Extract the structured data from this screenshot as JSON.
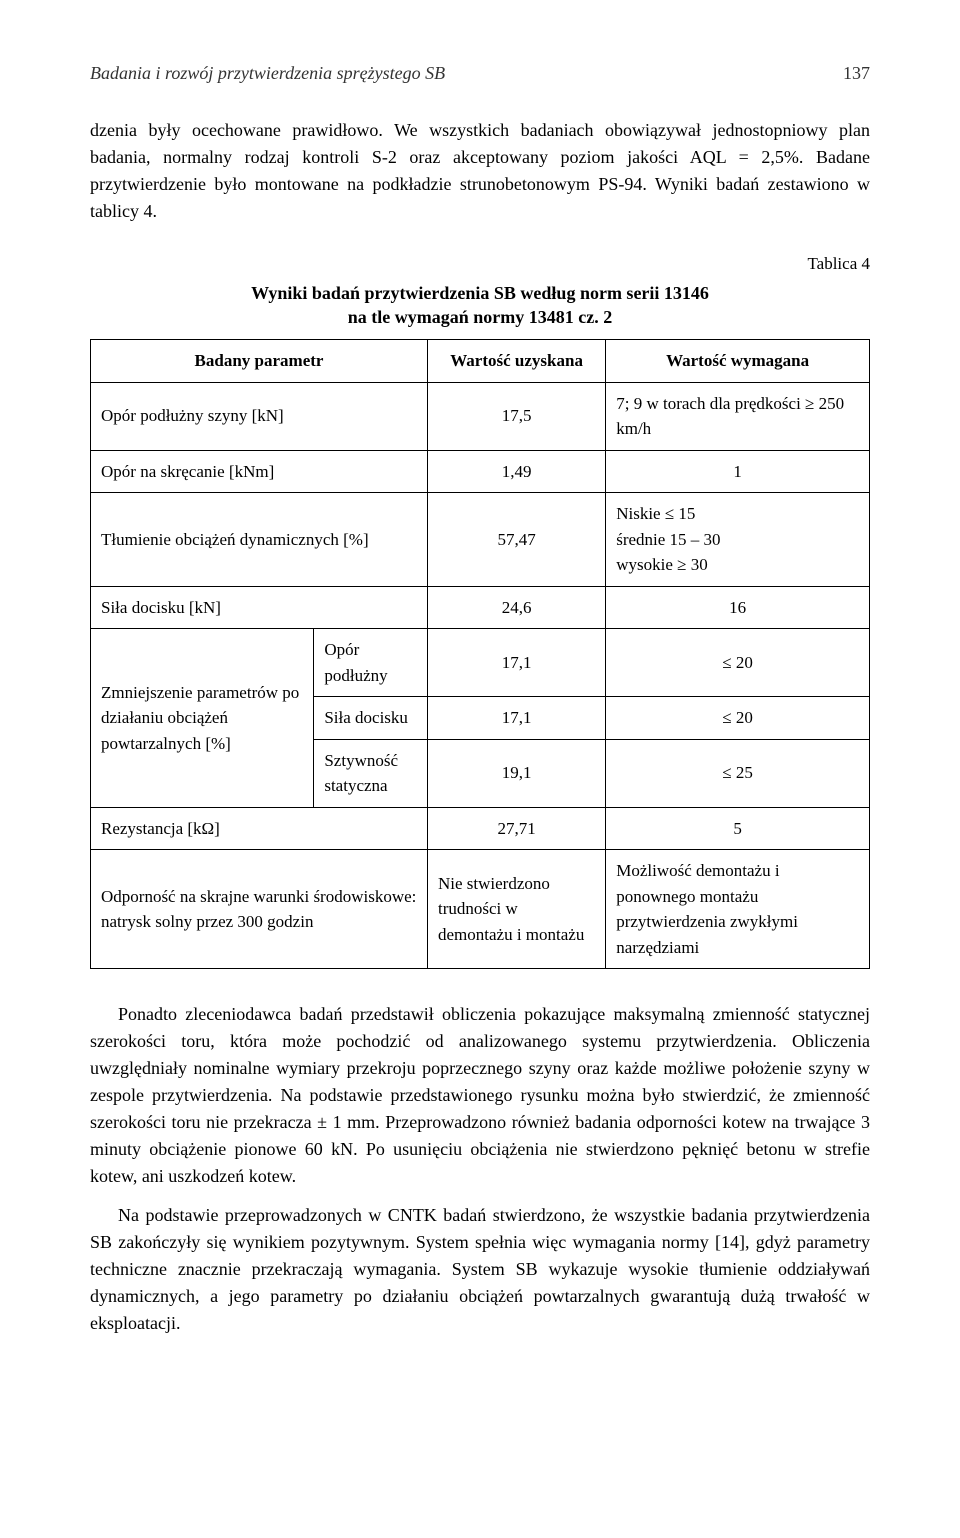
{
  "header": {
    "running_title": "Badania i rozwój przytwierdzenia sprężystego SB",
    "page_number": "137"
  },
  "paragraphs": {
    "p1": "dzenia były ocechowane prawidłowo. We wszystkich badaniach obowiązywał jednostopniowy plan badania, normalny rodzaj kontroli S-2 oraz akceptowany poziom jakości AQL = 2,5%. Badane przytwierdzenie było montowane na podkładzie strunobetonowym PS-94. Wyniki badań zestawiono w tablicy 4.",
    "p2": "Ponadto zleceniodawca badań przedstawił obliczenia pokazujące maksymalną zmienność statycznej szerokości toru, która może pochodzić od analizowanego systemu przytwierdzenia. Obliczenia uwzględniały nominalne wymiary przekroju poprzecznego szyny oraz każde możliwe położenie szyny w zespole przytwierdzenia. Na podstawie przedstawionego rysunku można było stwierdzić, że zmienność szerokości toru nie przekracza ± 1 mm. Przeprowadzono również badania odporności kotew na trwające 3 minuty obciążenie pionowe 60 kN. Po usunięciu obciążenia nie stwierdzono pęknięć betonu w strefie kotew, ani uszkodzeń kotew.",
    "p3": "Na podstawie przeprowadzonych w CNTK badań stwierdzono, że wszystkie badania przytwierdzenia SB zakończyły się wynikiem pozytywnym. System spełnia więc wymagania normy [14], gdyż parametry techniczne znacznie przekraczają wymagania. System SB wykazuje wysokie tłumienie oddziaływań dynamicznych, a jego parametry po działaniu obciążeń powtarzalnych gwarantują dużą trwałość w eksploatacji."
  },
  "table": {
    "type": "table",
    "label": "Tablica 4",
    "title_line1": "Wyniki badań przytwierdzenia SB według norm serii 13146",
    "title_line2": "na tle wymagań normy 13481 cz. 2",
    "columns": [
      "Badany parametr",
      "Wartość uzyskana",
      "Wartość wymagana"
    ],
    "border_color": "#000000",
    "background_color": "#ffffff",
    "fontsize": 17,
    "header_fontsize": 17,
    "header_fontweight": "bold",
    "col_align": [
      "left",
      "center",
      "left"
    ],
    "rows": [
      {
        "param": "Opór podłużny szyny [kN]",
        "value": "17,5",
        "required": "7; 9 w torach dla prędkości ≥ 250 km/h",
        "req_align": "left"
      },
      {
        "param": "Opór na skręcanie [kNm]",
        "value": "1,49",
        "required": "1",
        "req_align": "center"
      },
      {
        "param": "Tłumienie obciążeń dynamicznych [%]",
        "value": "57,47",
        "required": "Niskie ≤ 15\nśrednie 15 – 30\nwysokie ≥ 30",
        "req_align": "left"
      },
      {
        "param": "Siła docisku [kN]",
        "value": "24,6",
        "required": "16",
        "req_align": "center"
      }
    ],
    "group": {
      "label": "Zmniejszenie parametrów po działaniu obciążeń powtarzalnych [%]",
      "subrows": [
        {
          "param": "Opór podłużny",
          "value": "17,1",
          "required": "≤ 20"
        },
        {
          "param": "Siła docisku",
          "value": "17,1",
          "required": "≤ 20"
        },
        {
          "param": "Sztywność statyczna",
          "value": "19,1",
          "required": "≤ 25"
        }
      ]
    },
    "rows_after": [
      {
        "param": "Rezystancja [kΩ]",
        "value": "27,71",
        "required": "5",
        "req_align": "center"
      },
      {
        "param": "Odporność na skrajne warunki środowiskowe: natrysk solny przez 300 godzin",
        "value": "Nie stwierdzono trudności w demontażu i montażu",
        "required": "Możliwość demontażu i ponownego montażu przytwierdzenia zwykłymi narzędziami",
        "req_align": "left"
      }
    ]
  }
}
